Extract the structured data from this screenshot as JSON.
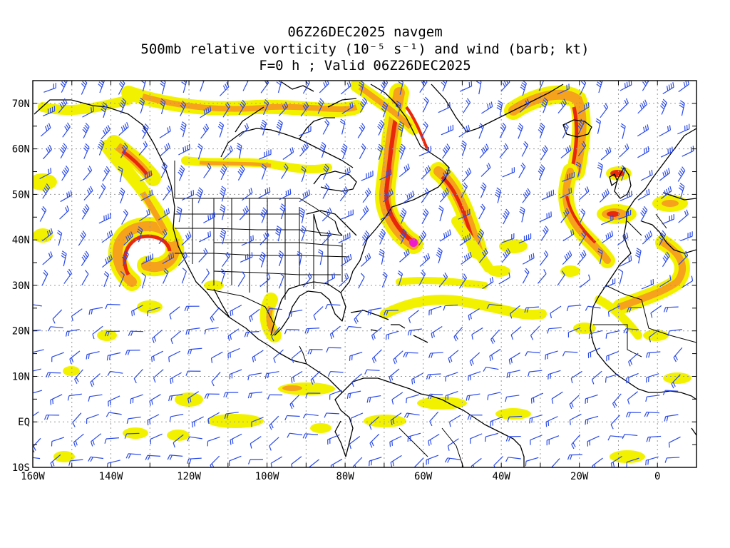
{
  "title": {
    "line1": "06Z26DEC2025 navgem",
    "line2": "500mb relative vorticity (10⁻⁵ s⁻¹) and wind (barb; kt)",
    "line3": "F=0 h ; Valid 06Z26DEC2025"
  },
  "map": {
    "lon_range": [
      -160,
      10
    ],
    "lat_range": [
      -10,
      75
    ],
    "lat_labels": [
      {
        "lat": 70,
        "text": "70N"
      },
      {
        "lat": 60,
        "text": "60N"
      },
      {
        "lat": 50,
        "text": "50N"
      },
      {
        "lat": 40,
        "text": "40N"
      },
      {
        "lat": 30,
        "text": "30N"
      },
      {
        "lat": 20,
        "text": "20N"
      },
      {
        "lat": 10,
        "text": "10N"
      },
      {
        "lat": 0,
        "text": "EQ"
      },
      {
        "lat": -10,
        "text": "10S"
      }
    ],
    "lon_labels": [
      {
        "lon": -160,
        "text": "160W"
      },
      {
        "lon": -140,
        "text": "140W"
      },
      {
        "lon": -120,
        "text": "120W"
      },
      {
        "lon": -100,
        "text": "100W"
      },
      {
        "lon": -80,
        "text": "80W"
      },
      {
        "lon": -60,
        "text": "60W"
      },
      {
        "lon": -40,
        "text": "40W"
      },
      {
        "lon": -20,
        "text": "20W"
      },
      {
        "lon": 0,
        "text": "0"
      }
    ],
    "colors": {
      "barb": "#2a4ae8",
      "coast": "#000000",
      "grid": "#9a9a9a",
      "vort_low": "#f2f200",
      "vort_mid": "#f7a21c",
      "vort_high": "#e8280c",
      "vort_max": "#f01ccc"
    }
  }
}
